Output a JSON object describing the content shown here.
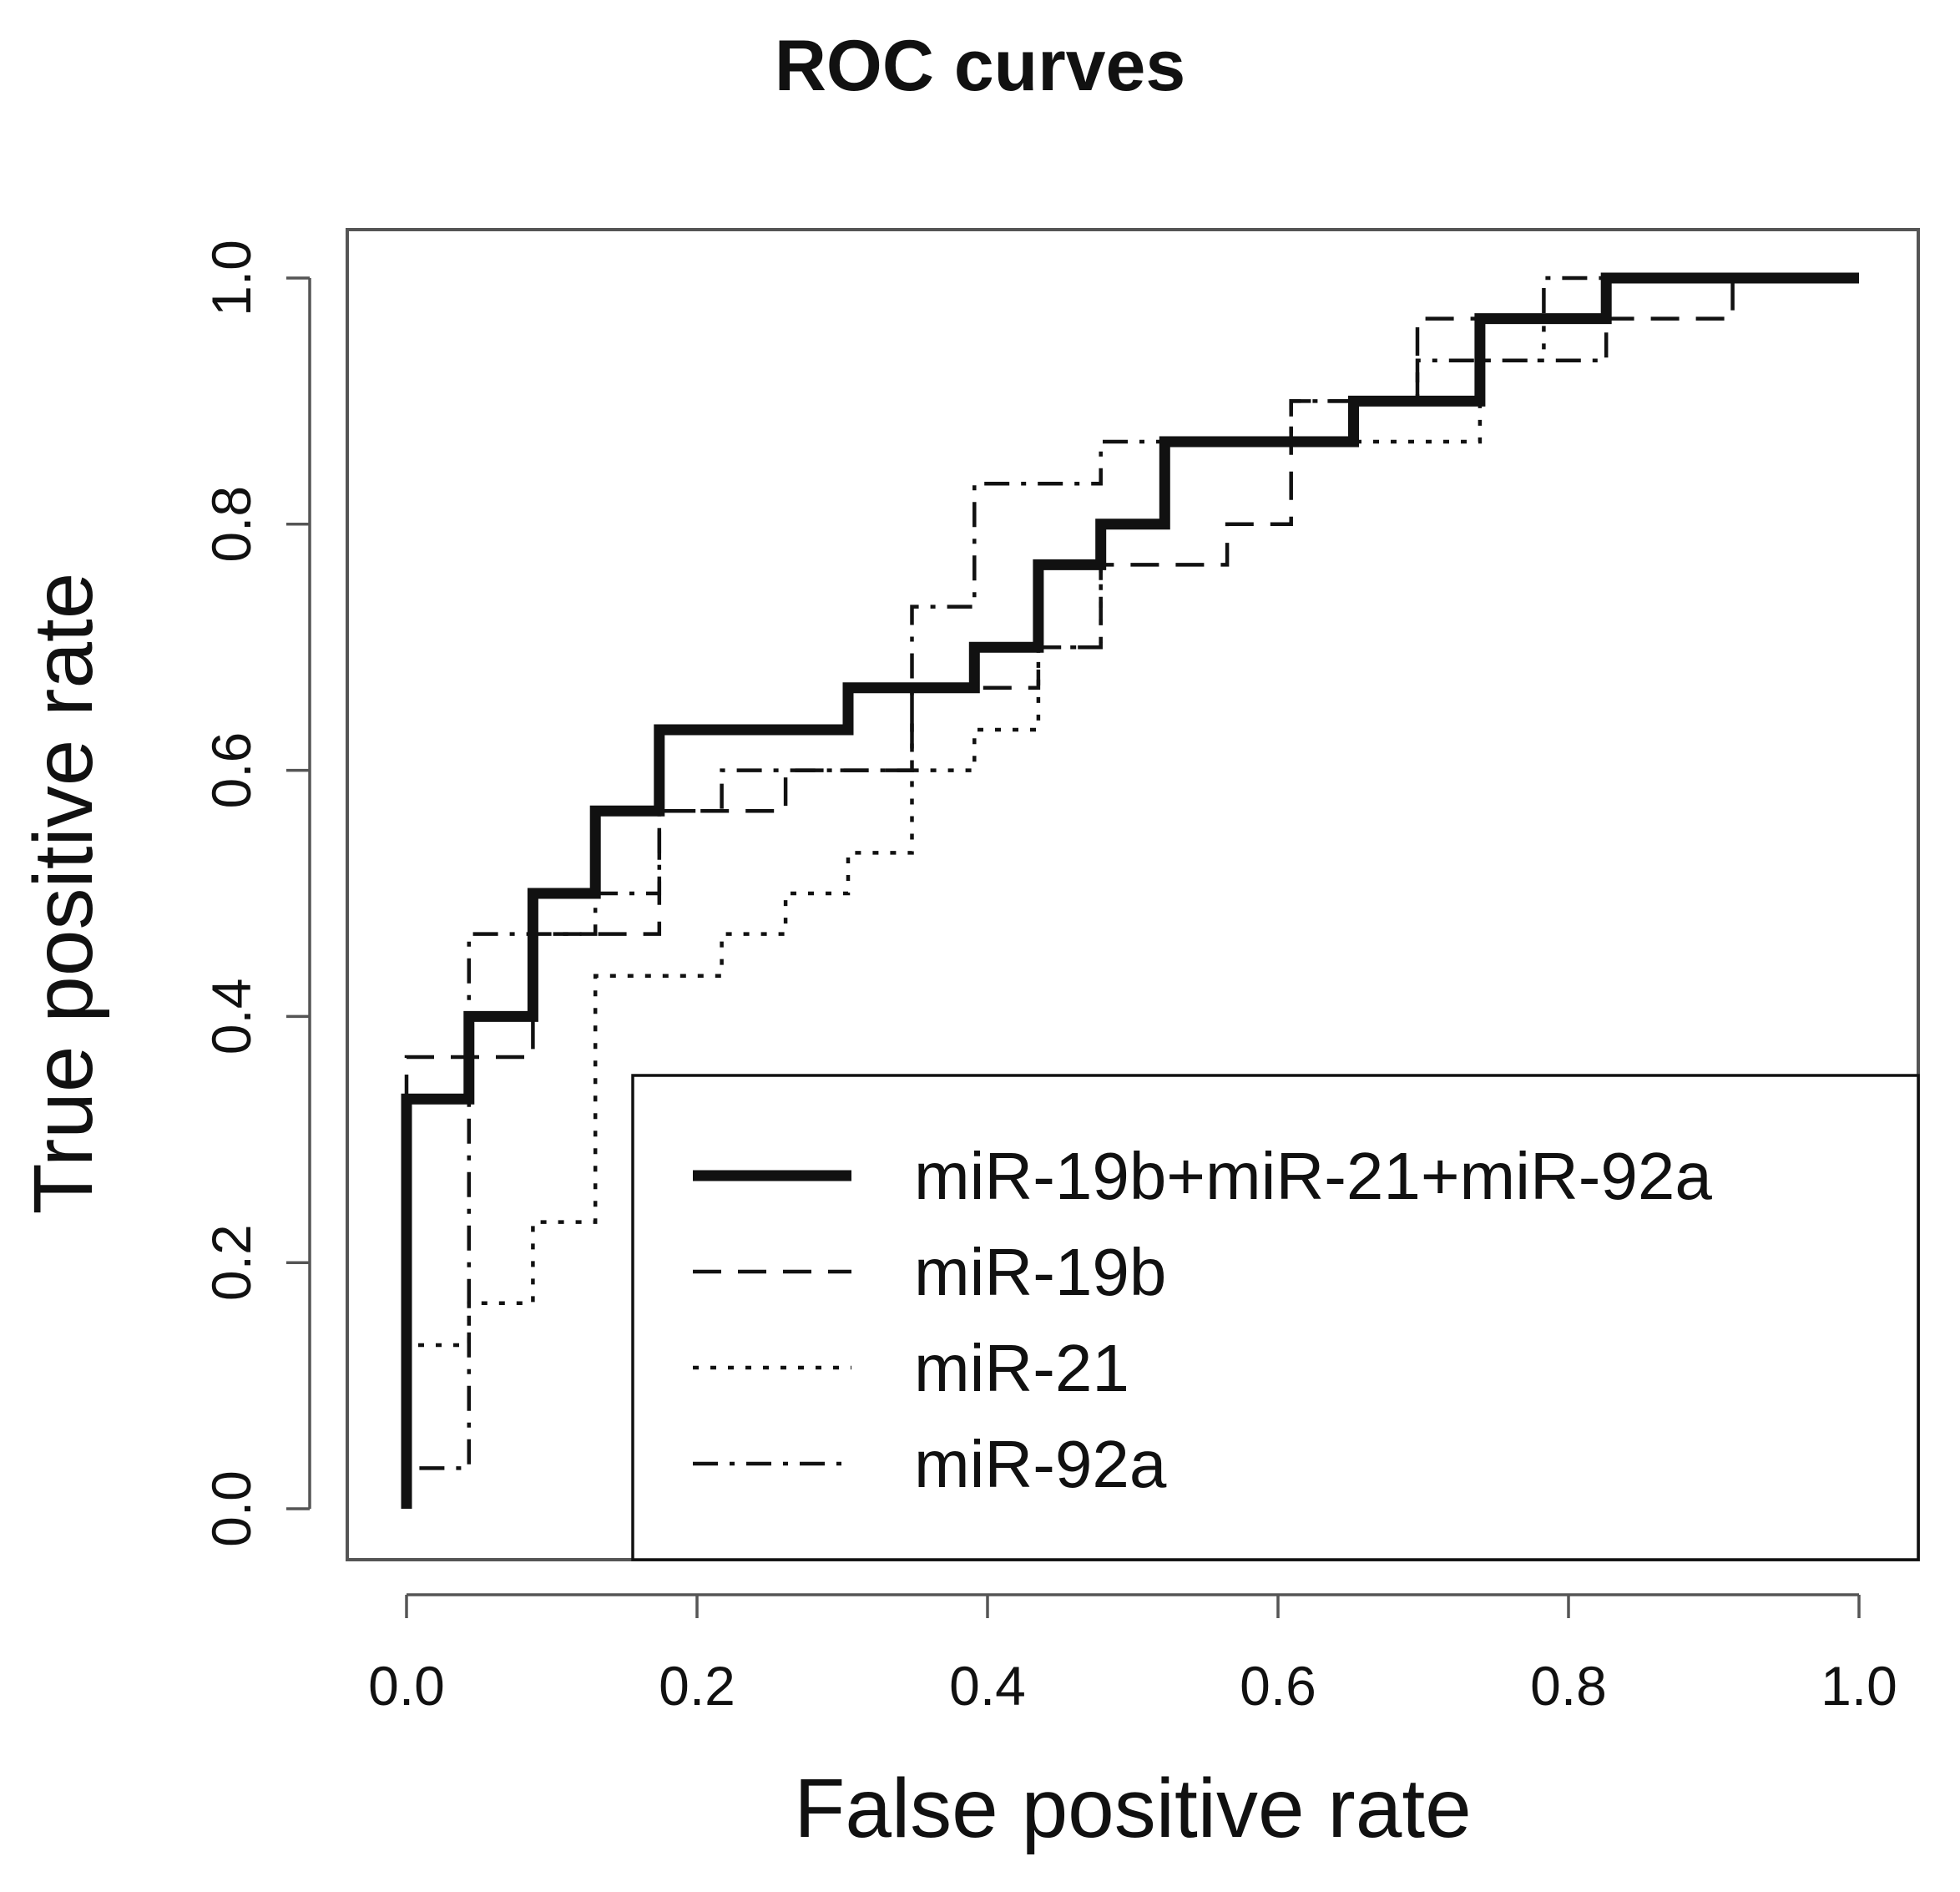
{
  "chart_data": {
    "type": "line",
    "title": "ROC curves",
    "xlabel": "False positive rate",
    "ylabel": "True positive rate",
    "xlim": [
      0.0,
      1.0
    ],
    "ylim": [
      0.0,
      1.0
    ],
    "x_ticks": [
      "0.0",
      "0.2",
      "0.4",
      "0.6",
      "0.8",
      "1.0"
    ],
    "y_ticks": [
      "0.0",
      "0.2",
      "0.4",
      "0.6",
      "0.8",
      "1.0"
    ],
    "grid": false,
    "legend_position": "bottom-right",
    "series": [
      {
        "name": "miR-19b+miR-21+miR-92a",
        "style": "solid-thick",
        "points": [
          [
            0,
            0
          ],
          [
            0,
            0.333
          ],
          [
            0.043,
            0.333
          ],
          [
            0.043,
            0.4
          ],
          [
            0.087,
            0.4
          ],
          [
            0.087,
            0.5
          ],
          [
            0.13,
            0.5
          ],
          [
            0.13,
            0.567
          ],
          [
            0.174,
            0.567
          ],
          [
            0.174,
            0.633
          ],
          [
            0.304,
            0.633
          ],
          [
            0.304,
            0.667
          ],
          [
            0.391,
            0.667
          ],
          [
            0.391,
            0.7
          ],
          [
            0.435,
            0.7
          ],
          [
            0.435,
            0.767
          ],
          [
            0.478,
            0.767
          ],
          [
            0.478,
            0.8
          ],
          [
            0.522,
            0.8
          ],
          [
            0.522,
            0.867
          ],
          [
            0.652,
            0.867
          ],
          [
            0.652,
            0.9
          ],
          [
            0.739,
            0.9
          ],
          [
            0.739,
            0.967
          ],
          [
            0.826,
            0.967
          ],
          [
            0.826,
            1.0
          ],
          [
            1.0,
            1.0
          ]
        ]
      },
      {
        "name": "miR-19b",
        "style": "dashed",
        "points": [
          [
            0,
            0
          ],
          [
            0,
            0.367
          ],
          [
            0.087,
            0.367
          ],
          [
            0.087,
            0.467
          ],
          [
            0.174,
            0.467
          ],
          [
            0.174,
            0.567
          ],
          [
            0.261,
            0.567
          ],
          [
            0.261,
            0.6
          ],
          [
            0.348,
            0.6
          ],
          [
            0.348,
            0.667
          ],
          [
            0.435,
            0.667
          ],
          [
            0.435,
            0.7
          ],
          [
            0.478,
            0.7
          ],
          [
            0.478,
            0.767
          ],
          [
            0.565,
            0.767
          ],
          [
            0.565,
            0.8
          ],
          [
            0.609,
            0.8
          ],
          [
            0.609,
            0.9
          ],
          [
            0.696,
            0.9
          ],
          [
            0.696,
            0.967
          ],
          [
            0.913,
            0.967
          ],
          [
            0.913,
            1.0
          ],
          [
            1.0,
            1.0
          ]
        ]
      },
      {
        "name": "miR-21",
        "style": "dotted",
        "points": [
          [
            0,
            0
          ],
          [
            0,
            0.133
          ],
          [
            0.043,
            0.133
          ],
          [
            0.043,
            0.167
          ],
          [
            0.087,
            0.167
          ],
          [
            0.087,
            0.233
          ],
          [
            0.13,
            0.233
          ],
          [
            0.13,
            0.433
          ],
          [
            0.217,
            0.433
          ],
          [
            0.217,
            0.467
          ],
          [
            0.261,
            0.467
          ],
          [
            0.261,
            0.5
          ],
          [
            0.304,
            0.5
          ],
          [
            0.304,
            0.533
          ],
          [
            0.348,
            0.533
          ],
          [
            0.348,
            0.6
          ],
          [
            0.391,
            0.6
          ],
          [
            0.391,
            0.633
          ],
          [
            0.435,
            0.633
          ],
          [
            0.435,
            0.7
          ],
          [
            0.478,
            0.7
          ],
          [
            0.478,
            0.8
          ],
          [
            0.522,
            0.8
          ],
          [
            0.522,
            0.867
          ],
          [
            0.739,
            0.867
          ],
          [
            0.739,
            0.933
          ],
          [
            0.783,
            0.933
          ],
          [
            0.783,
            0.967
          ],
          [
            0.826,
            0.967
          ],
          [
            0.826,
            1.0
          ],
          [
            1.0,
            1.0
          ]
        ]
      },
      {
        "name": "miR-92a",
        "style": "dashdot",
        "points": [
          [
            0,
            0
          ],
          [
            0,
            0.033
          ],
          [
            0.043,
            0.033
          ],
          [
            0.043,
            0.467
          ],
          [
            0.13,
            0.467
          ],
          [
            0.13,
            0.5
          ],
          [
            0.174,
            0.5
          ],
          [
            0.174,
            0.567
          ],
          [
            0.217,
            0.567
          ],
          [
            0.217,
            0.6
          ],
          [
            0.348,
            0.6
          ],
          [
            0.348,
            0.733
          ],
          [
            0.391,
            0.733
          ],
          [
            0.391,
            0.833
          ],
          [
            0.478,
            0.833
          ],
          [
            0.478,
            0.867
          ],
          [
            0.609,
            0.867
          ],
          [
            0.609,
            0.9
          ],
          [
            0.696,
            0.9
          ],
          [
            0.696,
            0.933
          ],
          [
            0.826,
            0.933
          ],
          [
            0.826,
            0.967
          ],
          [
            0.783,
            0.967
          ],
          [
            0.783,
            1.0
          ],
          [
            1.0,
            1.0
          ]
        ]
      }
    ]
  }
}
